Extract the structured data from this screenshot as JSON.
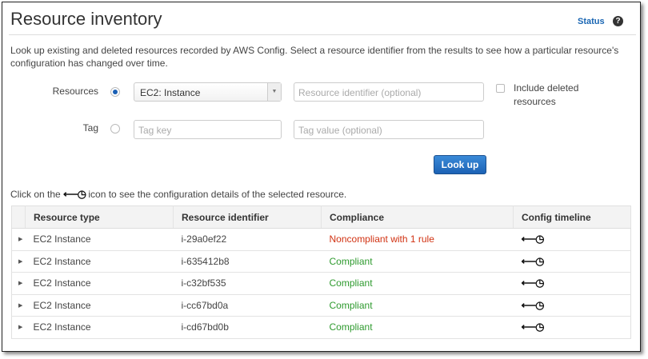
{
  "header": {
    "title": "Resource inventory",
    "status_link": "Status",
    "help_icon": "?"
  },
  "description": "Look up existing and deleted resources recorded by AWS Config. Select a resource identifier from the results to see how a particular resource's configuration has changed over time.",
  "form": {
    "resources_label": "Resources",
    "resources_selected": true,
    "resource_type_value": "EC2: Instance",
    "resource_id_placeholder": "Resource identifier (optional)",
    "include_deleted_label": "Include deleted resources",
    "include_deleted_checked": false,
    "tag_label": "Tag",
    "tag_selected": false,
    "tag_key_placeholder": "Tag key",
    "tag_value_placeholder": "Tag value (optional)",
    "lookup_button": "Look up"
  },
  "hint": {
    "before": "Click on the",
    "icon": "config-timeline-icon",
    "after": "icon to see the configuration details of the selected resource."
  },
  "table": {
    "columns": [
      "Resource type",
      "Resource identifier",
      "Compliance",
      "Config timeline"
    ],
    "rows": [
      {
        "type": "EC2 Instance",
        "id": "i-29a0ef22",
        "compliance": "Noncompliant with 1 rule"
      },
      {
        "type": "EC2 Instance",
        "id": "i-635412b8",
        "compliance": "Compliant"
      },
      {
        "type": "EC2 Instance",
        "id": "i-c32bf535",
        "compliance": "Compliant"
      },
      {
        "type": "EC2 Instance",
        "id": "i-cc67bd0a",
        "compliance": "Compliant"
      },
      {
        "type": "EC2 Instance",
        "id": "i-cd67bd0b",
        "compliance": "Compliant"
      }
    ]
  },
  "colors": {
    "link": "#1a66b3",
    "button": "#1c62b5",
    "noncompliant": "#d13212",
    "compliant": "#2e9a2e"
  }
}
